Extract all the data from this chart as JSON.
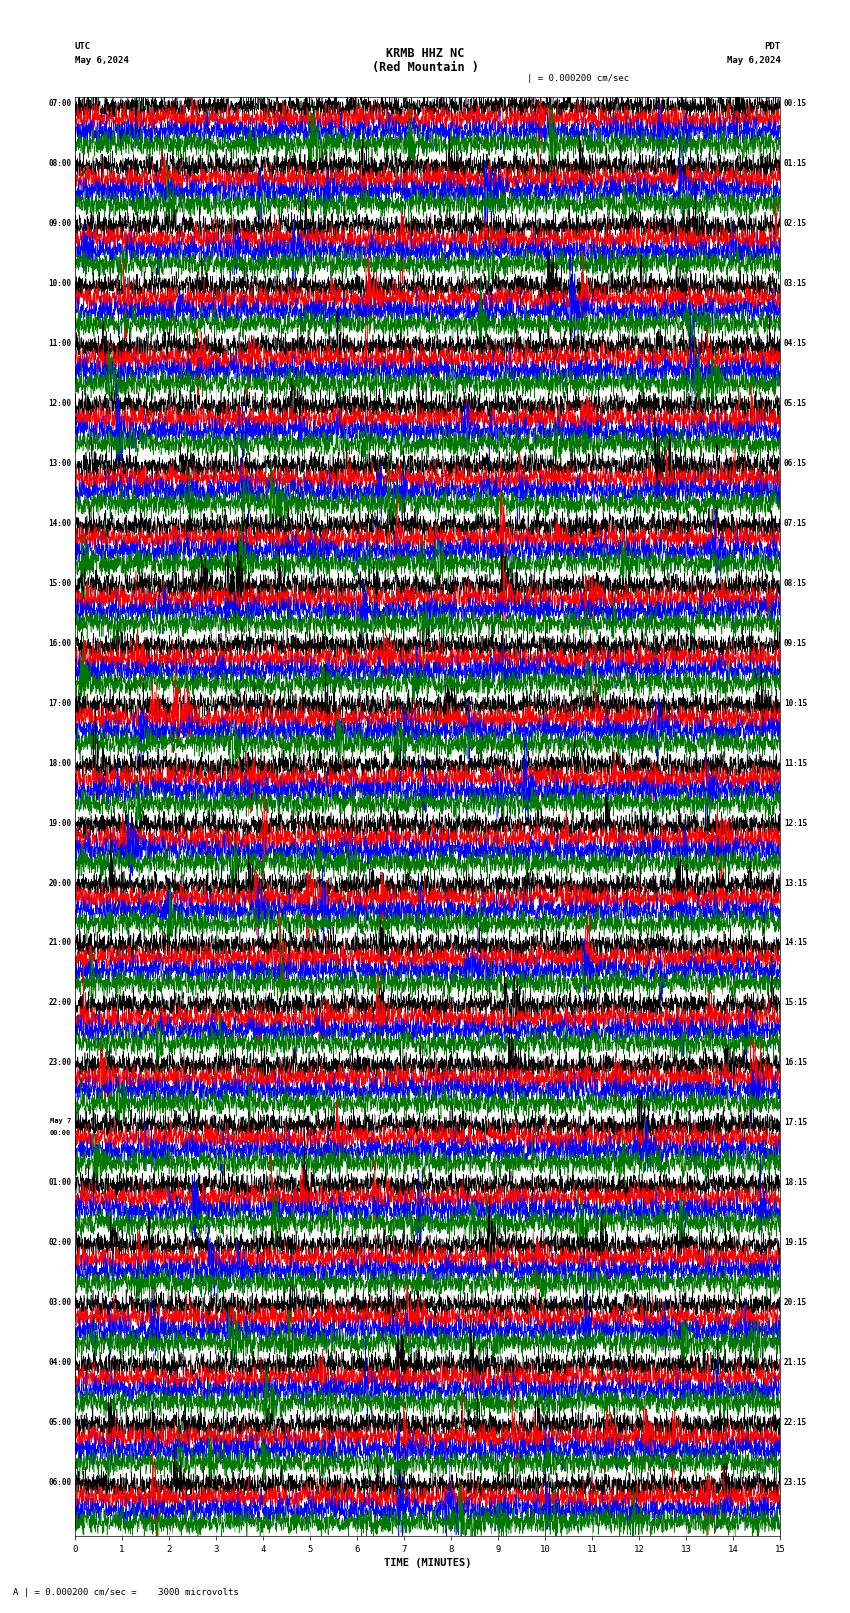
{
  "title_line1": "KRMB HHZ NC",
  "title_line2": "(Red Mountain )",
  "scale_text": "| = 0.000200 cm/sec",
  "utc_label": "UTC",
  "pdt_label": "PDT",
  "date_left": "May 6,2024",
  "date_right": "May 6,2024",
  "xlabel": "TIME (MINUTES)",
  "footer_text": "A | = 0.000200 cm/sec =    3000 microvolts",
  "bg_color": "#ffffff",
  "trace_colors": [
    "#000000",
    "#ff0000",
    "#0000ff",
    "#007700"
  ],
  "left_times_utc": [
    "07:00",
    "08:00",
    "09:00",
    "10:00",
    "11:00",
    "12:00",
    "13:00",
    "14:00",
    "15:00",
    "16:00",
    "17:00",
    "18:00",
    "19:00",
    "20:00",
    "21:00",
    "22:00",
    "23:00",
    "May 7\n00:00",
    "01:00",
    "02:00",
    "03:00",
    "04:00",
    "05:00",
    "06:00"
  ],
  "right_times_pdt": [
    "00:15",
    "01:15",
    "02:15",
    "03:15",
    "04:15",
    "05:15",
    "06:15",
    "07:15",
    "08:15",
    "09:15",
    "10:15",
    "11:15",
    "12:15",
    "13:15",
    "14:15",
    "15:15",
    "16:15",
    "17:15",
    "18:15",
    "19:15",
    "20:15",
    "21:15",
    "22:15",
    "23:15"
  ],
  "n_rows": 24,
  "traces_per_row": 4,
  "minutes_per_row": 15,
  "x_ticks": [
    0,
    1,
    2,
    3,
    4,
    5,
    6,
    7,
    8,
    9,
    10,
    11,
    12,
    13,
    14,
    15
  ],
  "grid_minutes": [
    1,
    2,
    3,
    4,
    5,
    6,
    7,
    8,
    9,
    10,
    11,
    12,
    13,
    14
  ]
}
